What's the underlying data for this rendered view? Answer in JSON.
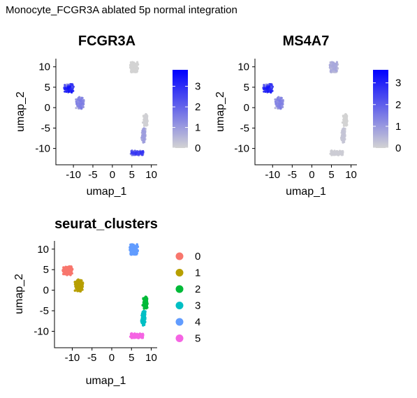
{
  "page_title": "Monocyte_FCGR3A ablated 5p normal integration",
  "chart_data": [
    {
      "type": "scatter",
      "kind": "feature",
      "title": "FCGR3A",
      "xlabel": "umap_1",
      "ylabel": "umap_2",
      "xlim": [
        -14.5,
        11.5
      ],
      "ylim": [
        -14,
        12
      ],
      "xticks": [
        -10,
        -5,
        0,
        5,
        10
      ],
      "yticks": [
        10,
        5,
        0,
        -5,
        -10
      ],
      "color_scale": {
        "low": "#D3D3D3",
        "high": "#0000FF",
        "min": 0,
        "max": 3.8,
        "ticks": [
          0,
          1,
          2,
          3
        ]
      },
      "expression_by_cluster": {
        "0": 2.8,
        "1": 1.3,
        "2": 0.05,
        "3": 0.8,
        "4": 0.0,
        "5": 2.3
      }
    },
    {
      "type": "scatter",
      "kind": "feature",
      "title": "MS4A7",
      "xlabel": "umap_1",
      "ylabel": "umap_2",
      "xlim": [
        -14.5,
        11.5
      ],
      "ylim": [
        -14,
        12
      ],
      "xticks": [
        -10,
        -5,
        0,
        5,
        10
      ],
      "yticks": [
        10,
        5,
        0,
        -5,
        -10
      ],
      "color_scale": {
        "low": "#D3D3D3",
        "high": "#0000FF",
        "min": 0,
        "max": 3.6,
        "ticks": [
          0,
          1,
          2,
          3
        ]
      },
      "expression_by_cluster": {
        "0": 2.6,
        "1": 1.2,
        "2": 0.0,
        "3": 0.2,
        "4": 0.6,
        "5": 0.1
      }
    },
    {
      "type": "scatter",
      "kind": "cluster",
      "title": "seurat_clusters",
      "xlabel": "umap_1",
      "ylabel": "umap_2",
      "xlim": [
        -14.5,
        11.5
      ],
      "ylim": [
        -14,
        12
      ],
      "xticks": [
        -10,
        -5,
        0,
        5,
        10
      ],
      "yticks": [
        10,
        5,
        0,
        -5,
        -10
      ],
      "legend_position": "right",
      "series": [
        {
          "name": "0",
          "color": "#F8766D",
          "center": [
            -11.2,
            4.7
          ],
          "spread": [
            1.2,
            1.0
          ]
        },
        {
          "name": "1",
          "color": "#B79F00",
          "center": [
            -8.3,
            1.1
          ],
          "spread": [
            0.9,
            1.4
          ]
        },
        {
          "name": "2",
          "color": "#00BA38",
          "center": [
            8.5,
            -3.0
          ],
          "spread": [
            0.5,
            1.4
          ]
        },
        {
          "name": "3",
          "color": "#00BFC4",
          "center": [
            8.0,
            -6.8
          ],
          "spread": [
            0.5,
            1.6
          ]
        },
        {
          "name": "4",
          "color": "#619CFF",
          "center": [
            5.6,
            10.0
          ],
          "spread": [
            1.0,
            1.2
          ]
        },
        {
          "name": "5",
          "color": "#F564E3",
          "center": [
            6.4,
            -11.1
          ],
          "spread": [
            1.6,
            0.5
          ]
        }
      ]
    }
  ]
}
